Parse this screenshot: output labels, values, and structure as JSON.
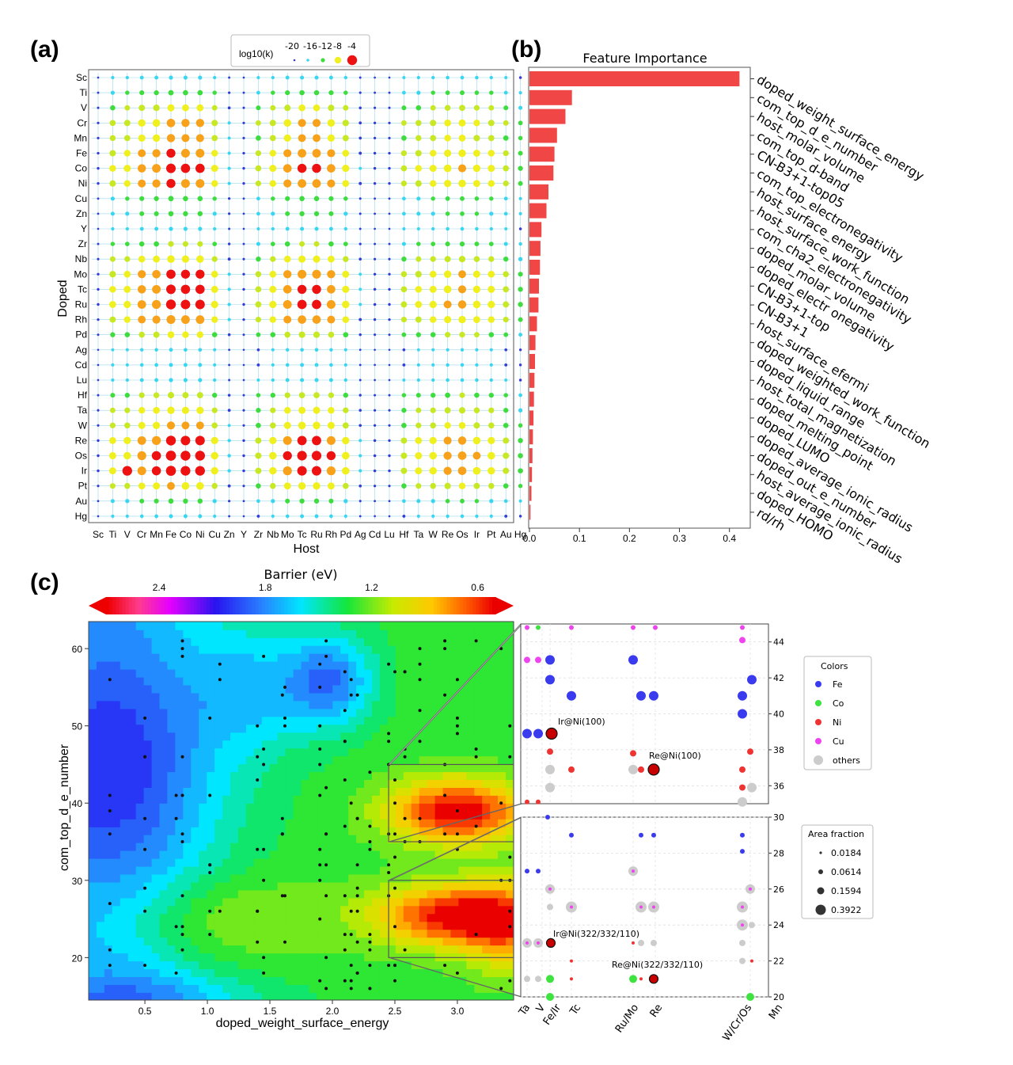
{
  "panels": {
    "a": "(a)",
    "b": "(b)",
    "c": "(c)"
  },
  "chart_data": [
    {
      "type": "scatter",
      "panel": "a",
      "xlabel": "Host",
      "ylabel": "Doped",
      "hosts": [
        "Sc",
        "Ti",
        "V",
        "Cr",
        "Mn",
        "Fe",
        "Co",
        "Ni",
        "Cu",
        "Zn",
        "Y",
        "Zr",
        "Nb",
        "Mo",
        "Tc",
        "Ru",
        "Rh",
        "Pd",
        "Ag",
        "Cd",
        "Lu",
        "Hf",
        "Ta",
        "W",
        "Re",
        "Os",
        "Ir",
        "Pt",
        "Au",
        "Hg"
      ],
      "dopants": [
        "Sc",
        "Ti",
        "V",
        "Cr",
        "Mn",
        "Fe",
        "Co",
        "Ni",
        "Cu",
        "Zn",
        "Y",
        "Zr",
        "Nb",
        "Mo",
        "Tc",
        "Ru",
        "Rh",
        "Pd",
        "Ag",
        "Cd",
        "Lu",
        "Hf",
        "Ta",
        "W",
        "Re",
        "Os",
        "Ir",
        "Pt",
        "Au",
        "Hg"
      ],
      "legend": {
        "title": "log10(k)",
        "labels": [
          "-20",
          "-16",
          "-12",
          "-8",
          "-4"
        ],
        "colors": [
          "#3a3ad6",
          "#3ad6f0",
          "#3fdc3f",
          "#f0f020",
          "#ee1111"
        ],
        "placement": "top-center"
      },
      "color_scale": [
        "#3a3ad6",
        "#3ad6f0",
        "#3fdc3f",
        "#c8e826",
        "#f0f020",
        "#f7a21a",
        "#ee1111"
      ],
      "dopant_strength": [
        0.18,
        0.32,
        0.55,
        0.74,
        0.7,
        0.82,
        0.9,
        0.82,
        0.32,
        0.3,
        0.18,
        0.36,
        0.62,
        0.86,
        0.9,
        0.95,
        0.8,
        0.5,
        0.14,
        0.16,
        0.18,
        0.45,
        0.6,
        0.68,
        0.95,
        1.0,
        0.98,
        0.65,
        0.3,
        0.16
      ],
      "host_strength": [
        0.1,
        0.55,
        0.6,
        0.8,
        0.85,
        1.0,
        0.95,
        0.95,
        0.6,
        0.25,
        0.1,
        0.45,
        0.6,
        0.82,
        0.92,
        0.92,
        0.82,
        0.62,
        0.2,
        0.12,
        0.1,
        0.45,
        0.55,
        0.6,
        0.7,
        0.75,
        0.65,
        0.6,
        0.45,
        0.3
      ],
      "note": "(empty)"
    },
    {
      "type": "bar",
      "panel": "b",
      "title": "Feature Importance",
      "orientation": "horizontal",
      "categories": [
        "doped_weight_surface_energy",
        "com_top_d_e_number",
        "host_molar_volume",
        "com_top_d-band",
        "CN-B3+1-top05",
        "com_top_electronegativity",
        "host_surface_energy",
        "host_surface_work_function",
        "com_cha2_electronegativity",
        "doped_molar_volume",
        "doped_electr onegativity",
        "CN-B3+1-top",
        "CN-B3+1",
        "host_surface_efermi",
        "doped_weighted_work_function",
        "doped_liquid_range",
        "host_total_magnetization",
        "doped_melting_point",
        "doped_LUMO",
        "doped_average_ionic_radius",
        "doped_out_e_number",
        "host_average_ionic_radius",
        "doped_HOMO",
        "rd/rh"
      ],
      "values": [
        0.42,
        0.085,
        0.072,
        0.055,
        0.05,
        0.048,
        0.038,
        0.034,
        0.024,
        0.022,
        0.021,
        0.019,
        0.018,
        0.015,
        0.012,
        0.011,
        0.01,
        0.009,
        0.008,
        0.007,
        0.006,
        0.005,
        0.004,
        0.002
      ],
      "xticks": [
        "0.0",
        "0.1",
        "0.2",
        "0.3",
        "0.4"
      ],
      "xlim": [
        0,
        0.44
      ],
      "color": "#f04646"
    },
    {
      "type": "heatmap",
      "panel": "c",
      "xlabel": "doped_weight_surface_energy",
      "ylabel": "com_top_d_e_number",
      "xlim": [
        0.05,
        3.45
      ],
      "ylim": [
        14.5,
        63.5
      ],
      "xticks": [
        "0.5",
        "1.0",
        "1.5",
        "2.0",
        "2.5",
        "3.0"
      ],
      "yticks": [
        "20",
        "30",
        "40",
        "50",
        "60"
      ],
      "colorbar": {
        "title": "Barrier (eV)",
        "ticks": [
          "2.4",
          "1.8",
          "1.2",
          "0.6"
        ],
        "range": [
          2.7,
          0.5
        ]
      },
      "hotspots": [
        {
          "x": 2.95,
          "y": 39,
          "v": 0.55
        },
        {
          "x": 2.9,
          "y": 26,
          "v": 0.58
        },
        {
          "x": 2.0,
          "y": 56,
          "v": 2.05
        },
        {
          "x": 0.3,
          "y": 55,
          "v": 2.45
        }
      ],
      "zoom_boxes": [
        {
          "x0": 2.45,
          "x1": 3.45,
          "y0": 35,
          "y1": 45
        },
        {
          "x0": 2.45,
          "x1": 3.45,
          "y0": 20,
          "y1": 30
        }
      ]
    },
    {
      "type": "scatter",
      "panel": "c-zoom",
      "xticks": [
        "Ta",
        "V",
        "Fe/Ir",
        "Tc",
        "Ru/Mo",
        "Re",
        "W/Cr/Os",
        "Mn"
      ],
      "top": {
        "ylim": [
          35,
          45
        ],
        "yticks": [
          "36",
          "38",
          "40",
          "42",
          "44"
        ],
        "label": "Ir@Ni(100)",
        "label2": "Re@Ni(100)"
      },
      "bottom": {
        "ylim": [
          20,
          30
        ],
        "yticks": [
          "20",
          "22",
          "24",
          "26",
          "28",
          "30"
        ],
        "label": "Ir@Ni(322/332/110)",
        "label2": "Re@Ni(322/332/110)"
      },
      "colors_legend": {
        "title": "Colors",
        "items": [
          {
            "label": "Fe",
            "color": "#3a3aee"
          },
          {
            "label": "Co",
            "color": "#3fe33f"
          },
          {
            "label": "Ni",
            "color": "#ee3333"
          },
          {
            "label": "Cu",
            "color": "#ee44ee"
          },
          {
            "label": "others",
            "color": "#cccccc"
          }
        ]
      },
      "area_legend": {
        "title": "Area fraction",
        "items": [
          "0.0184",
          "0.0614",
          "0.1594",
          "0.3922"
        ]
      }
    }
  ]
}
